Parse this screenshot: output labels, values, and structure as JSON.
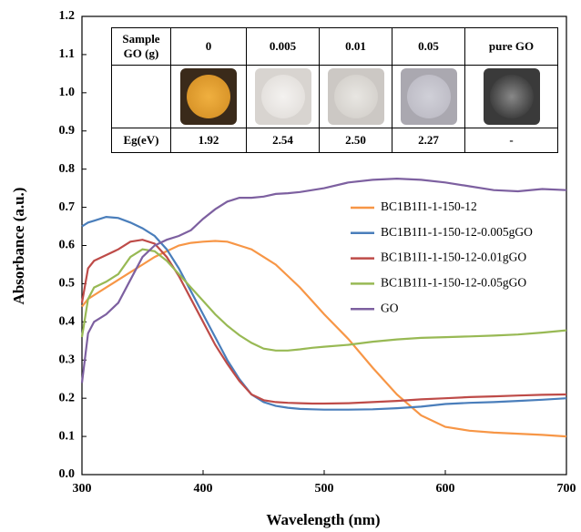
{
  "chart_data": {
    "type": "line",
    "xlabel": "Wavelength (nm)",
    "ylabel": "Absorbance (a.u.)",
    "x": [
      300,
      305,
      310,
      320,
      330,
      340,
      350,
      360,
      370,
      380,
      390,
      400,
      410,
      420,
      430,
      440,
      450,
      460,
      470,
      480,
      490,
      500,
      520,
      540,
      560,
      580,
      600,
      620,
      640,
      660,
      680,
      700
    ],
    "series": [
      {
        "name": "BC1B1I1-1-150-12",
        "color": "#f79646",
        "values": [
          0.44,
          0.46,
          0.47,
          0.49,
          0.51,
          0.53,
          0.55,
          0.57,
          0.585,
          0.6,
          0.607,
          0.61,
          0.612,
          0.61,
          0.6,
          0.59,
          0.57,
          0.55,
          0.52,
          0.49,
          0.455,
          0.42,
          0.355,
          0.28,
          0.21,
          0.155,
          0.125,
          0.115,
          0.11,
          0.107,
          0.104,
          0.1
        ]
      },
      {
        "name": "BC1B1I1-1-150-12-0.005gGO",
        "color": "#4a7ebb",
        "values": [
          0.65,
          0.66,
          0.665,
          0.675,
          0.672,
          0.66,
          0.645,
          0.625,
          0.59,
          0.54,
          0.48,
          0.42,
          0.36,
          0.3,
          0.25,
          0.21,
          0.19,
          0.18,
          0.175,
          0.172,
          0.171,
          0.17,
          0.17,
          0.171,
          0.174,
          0.178,
          0.185,
          0.188,
          0.19,
          0.193,
          0.196,
          0.2
        ]
      },
      {
        "name": "BC1B1I1-1-150-12-0.01gGO",
        "color": "#be4b48",
        "values": [
          0.45,
          0.54,
          0.56,
          0.575,
          0.59,
          0.61,
          0.615,
          0.605,
          0.57,
          0.52,
          0.46,
          0.4,
          0.34,
          0.29,
          0.245,
          0.21,
          0.195,
          0.19,
          0.188,
          0.187,
          0.186,
          0.186,
          0.187,
          0.19,
          0.193,
          0.197,
          0.2,
          0.203,
          0.205,
          0.207,
          0.209,
          0.21
        ]
      },
      {
        "name": "BC1B1I1-1-150-12-0.05gGO",
        "color": "#98b954",
        "values": [
          0.36,
          0.46,
          0.49,
          0.505,
          0.525,
          0.57,
          0.59,
          0.585,
          0.56,
          0.525,
          0.49,
          0.455,
          0.42,
          0.39,
          0.365,
          0.345,
          0.33,
          0.325,
          0.325,
          0.328,
          0.332,
          0.335,
          0.34,
          0.348,
          0.354,
          0.358,
          0.36,
          0.362,
          0.364,
          0.367,
          0.372,
          0.378
        ]
      },
      {
        "name": "GO",
        "color": "#7d60a0",
        "values": [
          0.24,
          0.37,
          0.4,
          0.42,
          0.45,
          0.51,
          0.57,
          0.6,
          0.615,
          0.625,
          0.64,
          0.67,
          0.695,
          0.715,
          0.725,
          0.725,
          0.728,
          0.735,
          0.737,
          0.74,
          0.745,
          0.75,
          0.765,
          0.772,
          0.775,
          0.772,
          0.765,
          0.755,
          0.745,
          0.742,
          0.748,
          0.745
        ]
      }
    ],
    "xlim": [
      300,
      700
    ],
    "xticks": [
      300,
      400,
      500,
      600,
      700
    ],
    "ylim": [
      0,
      1.2
    ],
    "yticks": [
      {
        "value": 0,
        "label": "0.0"
      },
      0.1,
      0.2,
      0.3,
      0.4,
      0.5,
      0.6,
      0.7,
      0.8,
      0.9,
      {
        "value": 1,
        "label": "1.0"
      },
      1.1,
      1.2
    ],
    "legend": "right"
  },
  "table": {
    "header": [
      "Sample GO (g)",
      "0",
      "0.005",
      "0.01",
      "0.05",
      "pure GO"
    ],
    "eg_row": [
      "Eg(eV)",
      "1.92",
      "2.54",
      "2.50",
      "2.27",
      "-"
    ]
  }
}
